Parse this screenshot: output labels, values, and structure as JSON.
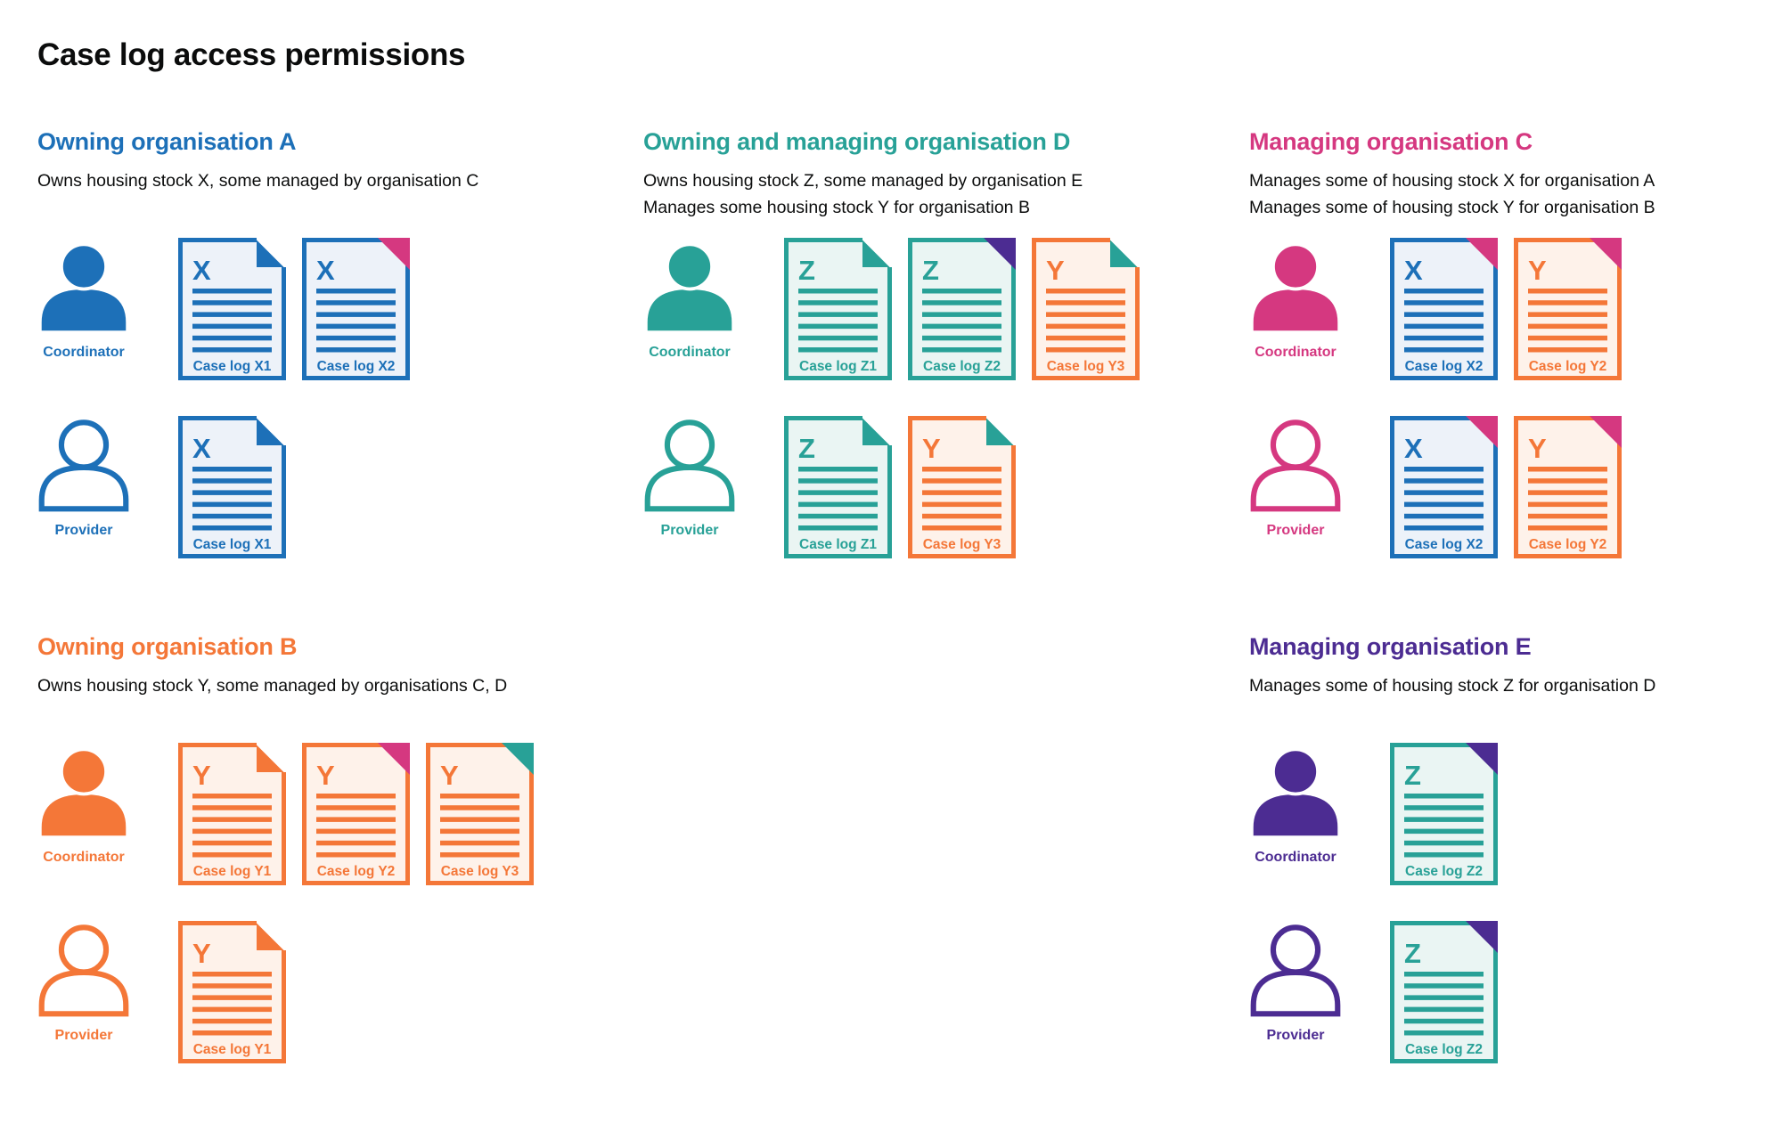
{
  "page_title": "Case log access permissions",
  "colors": {
    "blue": "#1d70b8",
    "teal": "#28a197",
    "pink": "#d53880",
    "orange": "#f47738",
    "purple": "#4c2c92",
    "text": "#0b0c0c"
  },
  "doc_tints": {
    "blue": "#edf2f9",
    "teal": "#eaf5f3",
    "orange": "#fef2ea"
  },
  "sections": [
    {
      "id": "owning-organisation-a",
      "grid_area": "a",
      "color_key": "blue",
      "heading": "Owning organisation A",
      "description_lines": [
        "Owns housing stock X, some managed by organisation C"
      ],
      "rows": [
        {
          "role_label": "Coordinator",
          "person_style": "filled",
          "docs": [
            {
              "letter": "X",
              "label": "Case log X1",
              "doc_color": "blue",
              "fold_color": "blue",
              "fold_style": "flap"
            },
            {
              "letter": "X",
              "label": "Case log X2",
              "doc_color": "blue",
              "fold_color": "pink",
              "fold_style": "solid"
            }
          ]
        },
        {
          "role_label": "Provider",
          "person_style": "outline",
          "docs": [
            {
              "letter": "X",
              "label": "Case log X1",
              "doc_color": "blue",
              "fold_color": "blue",
              "fold_style": "flap"
            }
          ]
        }
      ]
    },
    {
      "id": "owning-and-managing-organisation-d",
      "grid_area": "d",
      "color_key": "teal",
      "heading": "Owning and managing organisation D",
      "description_lines": [
        "Owns housing stock Z, some managed by organisation E",
        "Manages some housing stock Y for organisation B"
      ],
      "rows": [
        {
          "role_label": "Coordinator",
          "person_style": "filled",
          "docs": [
            {
              "letter": "Z",
              "label": "Case log Z1",
              "doc_color": "teal",
              "fold_color": "teal",
              "fold_style": "flap"
            },
            {
              "letter": "Z",
              "label": "Case log Z2",
              "doc_color": "teal",
              "fold_color": "purple",
              "fold_style": "solid"
            },
            {
              "letter": "Y",
              "label": "Case log Y3",
              "doc_color": "orange",
              "fold_color": "teal",
              "fold_style": "flap"
            }
          ]
        },
        {
          "role_label": "Provider",
          "person_style": "outline",
          "docs": [
            {
              "letter": "Z",
              "label": "Case log Z1",
              "doc_color": "teal",
              "fold_color": "teal",
              "fold_style": "flap"
            },
            {
              "letter": "Y",
              "label": "Case log Y3",
              "doc_color": "orange",
              "fold_color": "teal",
              "fold_style": "flap"
            }
          ]
        }
      ]
    },
    {
      "id": "managing-organisation-c",
      "grid_area": "c",
      "color_key": "pink",
      "heading": "Managing organisation C",
      "description_lines": [
        "Manages some of housing stock X for organisation A",
        "Manages some of housing stock Y for organisation B"
      ],
      "rows": [
        {
          "role_label": "Coordinator",
          "person_style": "filled",
          "docs": [
            {
              "letter": "X",
              "label": "Case log X2",
              "doc_color": "blue",
              "fold_color": "pink",
              "fold_style": "solid"
            },
            {
              "letter": "Y",
              "label": "Case log Y2",
              "doc_color": "orange",
              "fold_color": "pink",
              "fold_style": "solid"
            }
          ]
        },
        {
          "role_label": "Provider",
          "person_style": "outline",
          "docs": [
            {
              "letter": "X",
              "label": "Case log X2",
              "doc_color": "blue",
              "fold_color": "pink",
              "fold_style": "solid"
            },
            {
              "letter": "Y",
              "label": "Case log Y2",
              "doc_color": "orange",
              "fold_color": "pink",
              "fold_style": "solid"
            }
          ]
        }
      ]
    },
    {
      "id": "owning-organisation-b",
      "grid_area": "b",
      "color_key": "orange",
      "heading": "Owning organisation B",
      "description_lines": [
        "Owns housing stock Y, some managed by organisations C, D"
      ],
      "rows": [
        {
          "role_label": "Coordinator",
          "person_style": "filled",
          "docs": [
            {
              "letter": "Y",
              "label": "Case log Y1",
              "doc_color": "orange",
              "fold_color": "orange",
              "fold_style": "flap"
            },
            {
              "letter": "Y",
              "label": "Case log Y2",
              "doc_color": "orange",
              "fold_color": "pink",
              "fold_style": "solid"
            },
            {
              "letter": "Y",
              "label": "Case log Y3",
              "doc_color": "orange",
              "fold_color": "teal",
              "fold_style": "solid"
            }
          ]
        },
        {
          "role_label": "Provider",
          "person_style": "outline",
          "docs": [
            {
              "letter": "Y",
              "label": "Case log Y1",
              "doc_color": "orange",
              "fold_color": "orange",
              "fold_style": "flap"
            }
          ]
        }
      ]
    },
    {
      "id": "managing-organisation-e",
      "grid_area": "e",
      "color_key": "purple",
      "heading": "Managing organisation E",
      "description_lines": [
        "Manages some of housing stock Z for organisation D"
      ],
      "rows": [
        {
          "role_label": "Coordinator",
          "person_style": "filled",
          "docs": [
            {
              "letter": "Z",
              "label": "Case log Z2",
              "doc_color": "teal",
              "fold_color": "purple",
              "fold_style": "solid"
            }
          ]
        },
        {
          "role_label": "Provider",
          "person_style": "outline",
          "docs": [
            {
              "letter": "Z",
              "label": "Case log Z2",
              "doc_color": "teal",
              "fold_color": "purple",
              "fold_style": "solid"
            }
          ]
        }
      ]
    }
  ]
}
